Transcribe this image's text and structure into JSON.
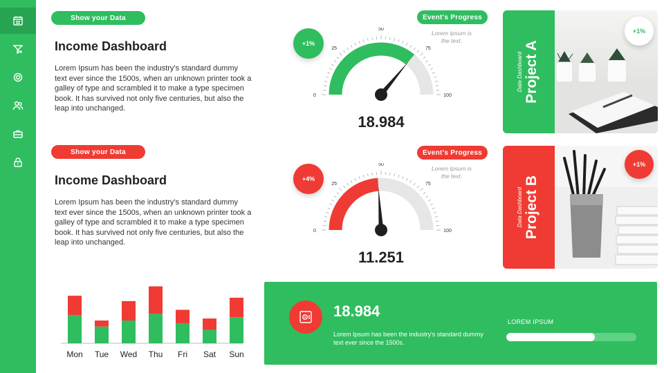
{
  "colors": {
    "green": "#2fbd5f",
    "red": "#ef3b33",
    "track": "#e6e6e6"
  },
  "sidebar": {
    "icons": [
      "calendar-icon",
      "filter-icon",
      "gear-icon",
      "users-icon",
      "briefcase-icon",
      "lock-icon"
    ]
  },
  "cards": [
    {
      "badge": "Show your  Data",
      "title": "Income Dashboard",
      "text": "Lorem Ipsum has been the industry's standard dummy text ever since the 1500s, when an unknown printer took a galley of type and scrambled it to make a type specimen book. It has survived not only five centuries, but also the leap into unchanged."
    },
    {
      "badge": "Show your  Data",
      "title": "Income Dashboard",
      "text": "Lorem Ipsum has been the industry's standard dummy text ever since the 1500s, when an unknown printer took a galley of type and scrambled it to make a type specimen book. It has survived not only five centuries, but also the leap into unchanged."
    }
  ],
  "gauges": [
    {
      "badge": "Event's Progress",
      "change": "+1%",
      "value": "18.984",
      "fill_level": 72,
      "note": "Lorem Ipsum is the text.",
      "ticks": [
        "0",
        "25",
        "50",
        "75",
        "100"
      ]
    },
    {
      "badge": "Event's Progress",
      "change": "+4%",
      "value": "11.251",
      "fill_level": 48,
      "note": "Lorem Ipsum is the text.",
      "ticks": [
        "0",
        "25",
        "50",
        "75",
        "100"
      ]
    }
  ],
  "projects": [
    {
      "subtitle": "Data Dashboard",
      "title": "Project A",
      "change": "+1%"
    },
    {
      "subtitle": "Data Dashboard",
      "title": "Project B",
      "change": "+1%"
    }
  ],
  "chart_data": {
    "type": "bar",
    "stacked": true,
    "categories": [
      "Mon",
      "Tue",
      "Wed",
      "Thu",
      "Fri",
      "Sat",
      "Sun"
    ],
    "series": [
      {
        "name": "green",
        "values": [
          42,
          25,
          34,
          44,
          30,
          20,
          39
        ]
      },
      {
        "name": "red",
        "values": [
          29,
          9,
          29,
          41,
          20,
          17,
          29
        ]
      }
    ],
    "ylim": [
      0,
      90
    ]
  },
  "banner": {
    "value": "18.984",
    "text": "Lorem Ipsum has been the industry's standard dummy text ever since the 1500s.",
    "progress_label": "LOREM IPSUM",
    "progress": 0.68
  }
}
